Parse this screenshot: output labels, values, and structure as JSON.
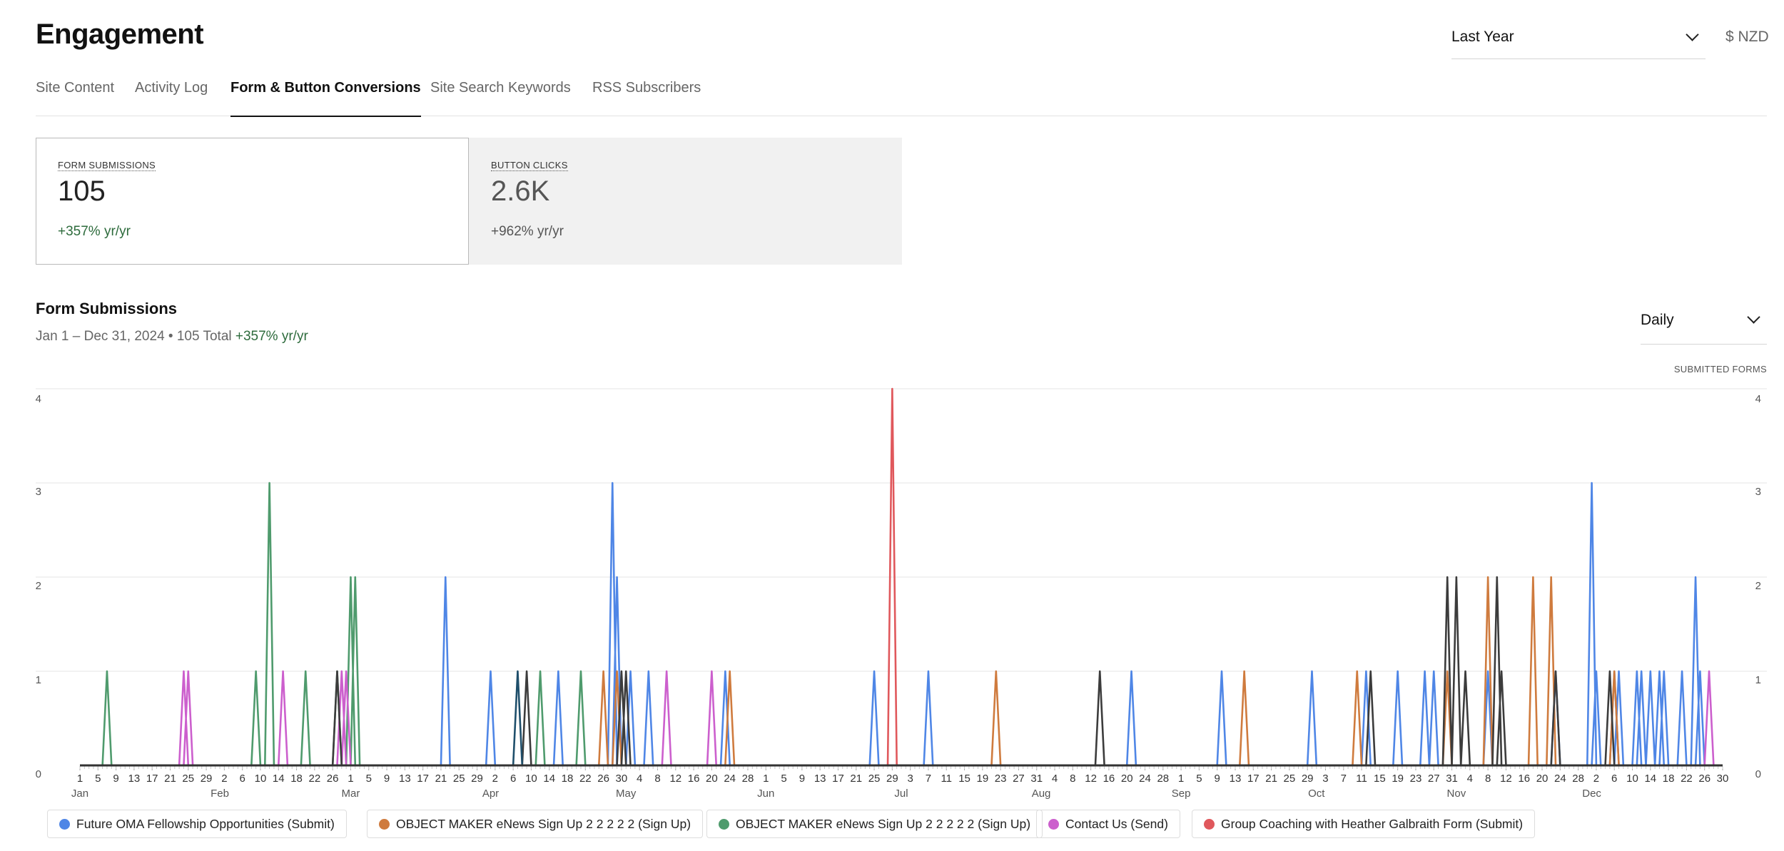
{
  "header": {
    "title": "Engagement",
    "range": "Last Year",
    "currency": "$ NZD"
  },
  "tabs": [
    {
      "label": "Site Content"
    },
    {
      "label": "Activity Log"
    },
    {
      "label": "Form & Button Conversions",
      "active": true
    },
    {
      "label": "Site Search Keywords"
    },
    {
      "label": "RSS Subscribers"
    }
  ],
  "cards": [
    {
      "label": "FORM SUBMISSIONS",
      "value": "105",
      "change": "+357% yr/yr",
      "selected": true
    },
    {
      "label": "BUTTON CLICKS",
      "value": "2.6K",
      "change": "+962% yr/yr",
      "selected": false
    }
  ],
  "section": {
    "title": "Form Submissions",
    "range_text": "Jan 1 – Dec 31, 2024 • 105 Total",
    "change": "+357% yr/yr",
    "interval": "Daily",
    "y_title": "SUBMITTED FORMS"
  },
  "legend": [
    {
      "name": "Future OMA Fellowship Opportunities (Submit)",
      "color": "#4f86e6"
    },
    {
      "name": "OBJECT MAKER eNews Sign Up 2 2 2 2 2 (Sign Up)",
      "color": "#cf7b3e"
    },
    {
      "name": "OBJECT MAKER eNews Sign Up 2 2 2 2 2 (Sign Up)",
      "color": "#4f9b6d"
    },
    {
      "name": "Contact Us (Send)",
      "color": "#cc5fcd"
    },
    {
      "name": "Group Coaching with Heather Galbraith Form (Submit)",
      "color": "#e0585c"
    }
  ],
  "chart_data": {
    "type": "line",
    "ylim": [
      0,
      4
    ],
    "y_ticks": [
      0,
      1,
      2,
      3,
      4
    ],
    "x_range": [
      "2024-01-01",
      "2024-12-30"
    ],
    "x_tick_days": [
      "1",
      "5",
      "9",
      "13",
      "17",
      "21",
      "25",
      "29",
      "2",
      "6",
      "10",
      "14",
      "18",
      "22",
      "26",
      "1",
      "5",
      "9",
      "13",
      "17",
      "21",
      "25",
      "29",
      "2",
      "6",
      "10",
      "14",
      "18",
      "22",
      "26",
      "30",
      "4",
      "8",
      "12",
      "16",
      "20",
      "24",
      "28",
      "1",
      "5",
      "9",
      "13",
      "17",
      "21",
      "25",
      "29",
      "3",
      "7",
      "11",
      "15",
      "19",
      "23",
      "27",
      "31",
      "4",
      "8",
      "12",
      "16",
      "20",
      "24",
      "28",
      "1",
      "5",
      "9",
      "13",
      "17",
      "21",
      "25",
      "29",
      "3",
      "7",
      "11",
      "15",
      "19",
      "23",
      "27",
      "31",
      "4",
      "8",
      "12",
      "16",
      "20",
      "24",
      "28",
      "2",
      "6",
      "10",
      "14",
      "18",
      "22",
      "26",
      "30"
    ],
    "month_labels": [
      {
        "label": "Jan",
        "date": "2024-01-01"
      },
      {
        "label": "Feb",
        "date": "2024-02-01"
      },
      {
        "label": "Mar",
        "date": "2024-03-01"
      },
      {
        "label": "Apr",
        "date": "2024-04-01"
      },
      {
        "label": "May",
        "date": "2024-05-01"
      },
      {
        "label": "Jun",
        "date": "2024-06-01"
      },
      {
        "label": "Jul",
        "date": "2024-07-01"
      },
      {
        "label": "Aug",
        "date": "2024-08-01"
      },
      {
        "label": "Sep",
        "date": "2024-09-01"
      },
      {
        "label": "Oct",
        "date": "2024-10-01"
      },
      {
        "label": "Nov",
        "date": "2024-11-01"
      },
      {
        "label": "Dec",
        "date": "2024-12-01"
      }
    ],
    "series": [
      {
        "name": "Future OMA Fellowship Opportunities (Submit)",
        "color": "#4f86e6",
        "points": [
          [
            "2024-03-22",
            2
          ],
          [
            "2024-04-01",
            1
          ],
          [
            "2024-04-16",
            1
          ],
          [
            "2024-04-28",
            3
          ],
          [
            "2024-04-29",
            2
          ],
          [
            "2024-05-02",
            1
          ],
          [
            "2024-05-06",
            1
          ],
          [
            "2024-05-23",
            1
          ],
          [
            "2024-06-25",
            1
          ],
          [
            "2024-07-07",
            1
          ],
          [
            "2024-08-21",
            1
          ],
          [
            "2024-09-10",
            1
          ],
          [
            "2024-09-30",
            1
          ],
          [
            "2024-10-12",
            1
          ],
          [
            "2024-10-19",
            1
          ],
          [
            "2024-10-25",
            1
          ],
          [
            "2024-10-27",
            1
          ],
          [
            "2024-11-08",
            1
          ],
          [
            "2024-11-23",
            1
          ],
          [
            "2024-12-01",
            3
          ],
          [
            "2024-12-02",
            1
          ],
          [
            "2024-12-07",
            1
          ],
          [
            "2024-12-11",
            1
          ],
          [
            "2024-12-14",
            1
          ],
          [
            "2024-12-17",
            1
          ],
          [
            "2024-12-21",
            1
          ],
          [
            "2024-12-24",
            2
          ],
          [
            "2024-12-25",
            1
          ],
          [
            "2024-12-06",
            1
          ],
          [
            "2024-12-12",
            1
          ],
          [
            "2024-12-16",
            1
          ]
        ]
      },
      {
        "name": "OBJECT MAKER eNews Sign Up 2 2 2 2 2 (Sign Up)",
        "color": "#cf7b3e",
        "points": [
          [
            "2024-04-26",
            1
          ],
          [
            "2024-04-29",
            1
          ],
          [
            "2024-05-24",
            1
          ],
          [
            "2024-07-22",
            1
          ],
          [
            "2024-09-15",
            1
          ],
          [
            "2024-10-10",
            1
          ],
          [
            "2024-10-30",
            1
          ],
          [
            "2024-11-08",
            2
          ],
          [
            "2024-11-18",
            2
          ],
          [
            "2024-11-22",
            2
          ],
          [
            "2024-12-06",
            1
          ]
        ]
      },
      {
        "name": "OBJECT MAKER eNews Sign Up 2 2 2 2 2 (Sign Up)",
        "color": "#4f9b6d",
        "points": [
          [
            "2024-01-07",
            1
          ],
          [
            "2024-02-09",
            1
          ],
          [
            "2024-02-12",
            3
          ],
          [
            "2024-02-20",
            1
          ],
          [
            "2024-02-27",
            1
          ],
          [
            "2024-03-01",
            2
          ],
          [
            "2024-03-02",
            2
          ],
          [
            "2024-04-12",
            1
          ],
          [
            "2024-04-21",
            1
          ]
        ]
      },
      {
        "name": "Contact Us (Send)",
        "color": "#cc5fcd",
        "points": [
          [
            "2024-01-24",
            1
          ],
          [
            "2024-01-25",
            1
          ],
          [
            "2024-02-15",
            1
          ],
          [
            "2024-02-28",
            1
          ],
          [
            "2024-02-29",
            1
          ],
          [
            "2024-05-10",
            1
          ],
          [
            "2024-05-20",
            1
          ],
          [
            "2024-12-27",
            1
          ]
        ]
      },
      {
        "name": "Group Coaching with Heather Galbraith Form (Submit)",
        "color": "#e0585c",
        "points": [
          [
            "2024-06-29",
            4
          ]
        ]
      },
      {
        "name": "",
        "color": "#3c3c3c",
        "points": [
          [
            "2024-02-27",
            1
          ],
          [
            "2024-04-09",
            1
          ],
          [
            "2024-04-30",
            1
          ],
          [
            "2024-05-01",
            1
          ],
          [
            "2024-08-14",
            1
          ],
          [
            "2024-10-13",
            1
          ],
          [
            "2024-10-30",
            2
          ],
          [
            "2024-11-03",
            1
          ],
          [
            "2024-11-11",
            1
          ],
          [
            "2024-11-23",
            1
          ],
          [
            "2024-12-05",
            1
          ],
          [
            "2024-11-10",
            2
          ],
          [
            "2024-11-01",
            2
          ]
        ]
      },
      {
        "name": "",
        "color": "#1f4f6b",
        "points": [
          [
            "2024-04-07",
            1
          ]
        ]
      }
    ]
  }
}
